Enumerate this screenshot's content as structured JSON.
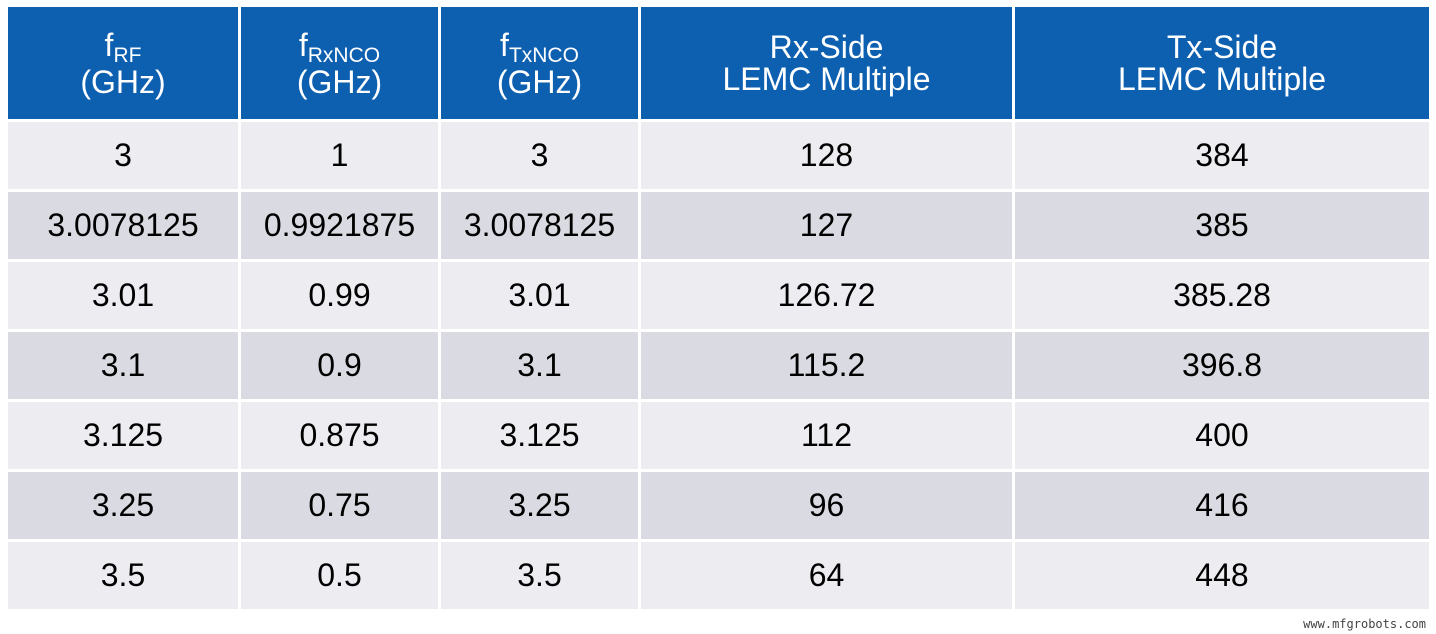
{
  "header": {
    "col1": {
      "main": "f",
      "sub": "RF",
      "unit": "(GHz)"
    },
    "col2": {
      "main": "f",
      "sub": "RxNCO",
      "unit": "(GHz)"
    },
    "col3": {
      "main": "f",
      "sub": "TxNCO",
      "unit": "(GHz)"
    },
    "col4": {
      "line1": "Rx-Side",
      "line2": "LEMC Multiple"
    },
    "col5": {
      "line1": "Tx-Side",
      "line2": "LEMC Multiple"
    }
  },
  "rows": [
    [
      "3",
      "1",
      "3",
      "128",
      "384"
    ],
    [
      "3.0078125",
      "0.9921875",
      "3.0078125",
      "127",
      "385"
    ],
    [
      "3.01",
      "0.99",
      "3.01",
      "126.72",
      "385.28"
    ],
    [
      "3.1",
      "0.9",
      "3.1",
      "115.2",
      "396.8"
    ],
    [
      "3.125",
      "0.875",
      "3.125",
      "112",
      "400"
    ],
    [
      "3.25",
      "0.75",
      "3.25",
      "96",
      "416"
    ],
    [
      "3.5",
      "0.5",
      "3.5",
      "64",
      "448"
    ]
  ],
  "colors": {
    "header_bg": "#0d5fb0",
    "row_light": "#ececf1",
    "row_dark": "#dadae2"
  },
  "watermark": "www.mfgrobots.com"
}
